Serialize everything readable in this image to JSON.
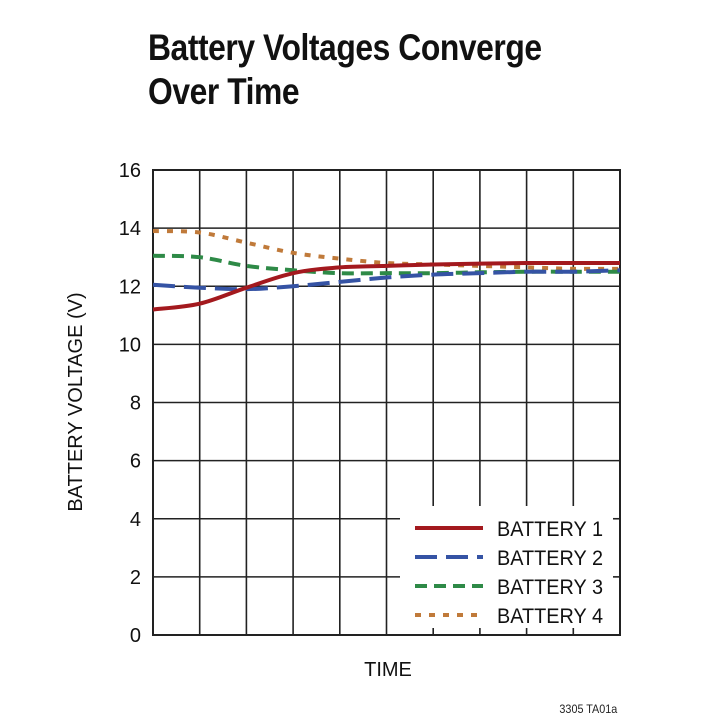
{
  "chart_data": {
    "type": "line",
    "title_lines": [
      "Battery Voltages Converge",
      "Over Time"
    ],
    "xlabel": "TIME",
    "ylabel": "BATTERY VOLTAGE (V)",
    "ylim": [
      0,
      16
    ],
    "yticks": [
      0,
      2,
      4,
      6,
      8,
      10,
      12,
      14,
      16
    ],
    "xlim": [
      0,
      10
    ],
    "x": [
      0,
      1,
      2,
      3,
      4,
      5,
      6,
      7,
      8,
      9,
      10
    ],
    "grid": true,
    "legend_position": "bottom-right",
    "series": [
      {
        "name": "BATTERY 1",
        "color": "#a3191e",
        "style": "solid",
        "values": [
          11.2,
          11.4,
          11.95,
          12.45,
          12.65,
          12.7,
          12.75,
          12.78,
          12.8,
          12.8,
          12.8
        ]
      },
      {
        "name": "BATTERY 2",
        "color": "#3553a4",
        "style": "longdash",
        "values": [
          12.05,
          11.95,
          11.9,
          12.0,
          12.15,
          12.3,
          12.4,
          12.45,
          12.5,
          12.5,
          12.55
        ]
      },
      {
        "name": "BATTERY 3",
        "color": "#2e8a47",
        "style": "dash",
        "values": [
          13.05,
          13.0,
          12.7,
          12.55,
          12.45,
          12.45,
          12.45,
          12.48,
          12.5,
          12.5,
          12.5
        ]
      },
      {
        "name": "BATTERY 4",
        "color": "#c07a3a",
        "style": "dot",
        "values": [
          13.9,
          13.85,
          13.5,
          13.15,
          12.95,
          12.8,
          12.75,
          12.7,
          12.65,
          12.6,
          12.6
        ]
      }
    ],
    "footnote": "3305 TA01a"
  }
}
